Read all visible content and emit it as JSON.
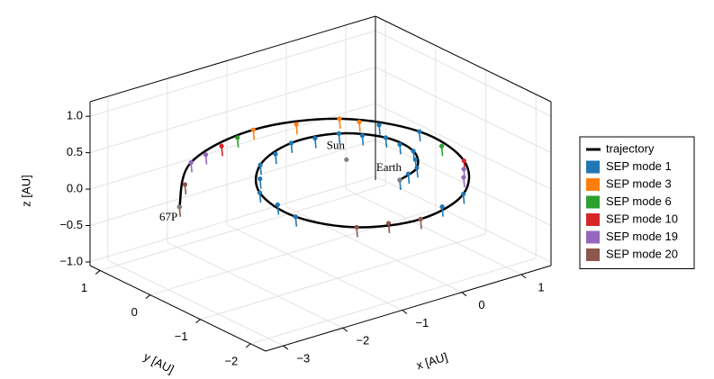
{
  "chart_data": {
    "type": "trajectory3d",
    "xlabel": "x [AU]",
    "ylabel": "y [AU]",
    "zlabel": "z [AU]",
    "xlim": [
      -3.3,
      1.5
    ],
    "ylim": [
      -2.3,
      1.2
    ],
    "zlim": [
      -1.05,
      1.2
    ],
    "xticks": [
      {
        "value": -3,
        "label": "−3"
      },
      {
        "value": -2,
        "label": "−2"
      },
      {
        "value": -1,
        "label": "−1"
      },
      0,
      1
    ],
    "yticks": [
      1,
      0,
      {
        "value": -1,
        "label": "−1"
      },
      {
        "value": -2,
        "label": "−2"
      }
    ],
    "zticks": [
      {
        "value": 1.0,
        "label": "1.0"
      },
      {
        "value": 0.5,
        "label": "0.5"
      },
      {
        "value": 0.0,
        "label": "0.0"
      },
      {
        "value": -0.5,
        "label": "−0.5"
      },
      {
        "value": -1.0,
        "label": "−1.0"
      }
    ],
    "grid": true,
    "legend": "right",
    "trajectory": {
      "name": "trajectory",
      "color": "#000000",
      "x": [
        0.12,
        0.56,
        0.88,
        0.88,
        0.48,
        -0.22,
        -1.01,
        -1.61,
        -1.75,
        -1.34,
        -0.5,
        0.48,
        1.2,
        1.36,
        0.8,
        -0.8,
        -1.99,
        -2.75
      ],
      "y": [
        -0.92,
        -0.74,
        -0.29,
        0.26,
        0.72,
        0.84,
        0.52,
        -0.18,
        -1.06,
        -1.79,
        -2.07,
        -1.76,
        -0.92,
        0.16,
        1.09,
        0.91,
        0.74,
        0.07
      ],
      "z": [
        0,
        0,
        0,
        0,
        0,
        0,
        0,
        0,
        0,
        0,
        0,
        0,
        0,
        0,
        0,
        0.3,
        0.2,
        0
      ]
    },
    "series": [
      {
        "name": "SEP mode 1",
        "color": "#1f77b4",
        "x": [
          0.12,
          0.34,
          0.56,
          0.72,
          0.88,
          0.88,
          0.88,
          0.68,
          0.48,
          0.13,
          -0.22,
          -0.62,
          -1.01,
          -1.31,
          -1.61,
          -1.68,
          -1.75,
          -0.01,
          0.48,
          1.36,
          1.08
        ],
        "y": [
          -0.92,
          -0.83,
          -0.74,
          -0.52,
          -0.29,
          -0.02,
          0.26,
          0.49,
          0.72,
          0.78,
          0.84,
          0.68,
          0.52,
          0.17,
          -0.18,
          -0.62,
          -1.06,
          -1.92,
          -1.76,
          0.16,
          0.63
        ],
        "z": [
          0,
          0,
          0,
          0,
          0,
          0,
          0,
          0,
          0,
          0,
          0,
          0,
          0,
          0,
          0,
          0,
          0,
          0,
          0,
          0,
          0
        ]
      },
      {
        "name": "SEP mode 3",
        "color": "#ff7f0e",
        "x": [
          0.94,
          0.8,
          0.0,
          -0.8
        ],
        "y": [
          0.86,
          1.09,
          1.0,
          0.91
        ],
        "z": [
          0,
          0,
          0.15,
          0.3
        ]
      },
      {
        "name": "SEP mode 6",
        "color": "#2ca02c",
        "x": [
          1.28,
          -1.1
        ],
        "y": [
          -0.38,
          0.87
        ],
        "z": [
          0,
          0.28
        ]
      },
      {
        "name": "SEP mode 10",
        "color": "#d62728",
        "x": [
          1.2,
          -1.4
        ],
        "y": [
          -0.92,
          0.83
        ],
        "z": [
          0,
          0.25
        ]
      },
      {
        "name": "SEP mode 19",
        "color": "#9467bd",
        "x": [
          0.84,
          1.02,
          -1.7,
          -1.99
        ],
        "y": [
          -1.34,
          -1.13,
          0.79,
          0.74
        ],
        "z": [
          0,
          0,
          0.22,
          0.2
        ]
      },
      {
        "name": "SEP mode 20",
        "color": "#8c564b",
        "x": [
          -1.34,
          -0.92,
          -0.5,
          -2.37,
          -2.75
        ],
        "y": [
          -1.79,
          -1.93,
          -2.07,
          0.41,
          0.07
        ],
        "z": [
          0,
          0,
          0,
          0.1,
          0
        ]
      }
    ],
    "bodies": [
      {
        "name": "Sun",
        "x": 0,
        "y": 0,
        "z": 0
      },
      {
        "name": "Earth",
        "x": 0.12,
        "y": -0.92,
        "z": 0
      },
      {
        "name": "67P",
        "x": -2.75,
        "y": 0.07,
        "z": 0
      }
    ]
  }
}
